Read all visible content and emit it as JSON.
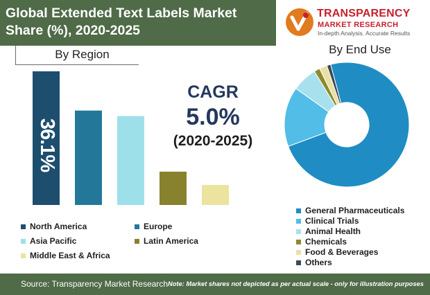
{
  "header": {
    "title": "Global Extended Text Labels Market Share (%), 2020-2025",
    "logo_brand": "TRANSPARENCY",
    "logo_sub": "MARKET RESEARCH",
    "logo_tagline": "In-depth Analysis. Accurate Results"
  },
  "cagr": {
    "label": "CAGR",
    "value": "5.0%",
    "period": "(2020-2025)"
  },
  "footer": {
    "source": "Source: Transparency Market Research",
    "note": "Note: Market shares not depicted as per actual scale - only for illustration purposes"
  },
  "chart_data": [
    {
      "type": "bar",
      "title": "By Region",
      "categories": [
        "North America",
        "Europe",
        "Asia Pacific",
        "Latin America",
        "Middle East & Africa"
      ],
      "values": [
        36.1,
        25.5,
        24.0,
        9.0,
        5.4
      ],
      "ylim": [
        0,
        36.1
      ],
      "data_labels": [
        "36.1%",
        "",
        "",
        "",
        ""
      ],
      "colors": [
        "#1d4e6e",
        "#23789a",
        "#9ee0ea",
        "#88812e",
        "#ebe39e"
      ],
      "legend_placement": "bottom",
      "grid": false
    },
    {
      "type": "pie",
      "title": "By End Use",
      "donut": true,
      "categories": [
        "General Pharmaceuticals",
        "Clinical Trials",
        "Animal Health",
        "Chemicals",
        "Food & Beverages",
        "Others"
      ],
      "values": [
        73.5,
        15.5,
        6.5,
        1.5,
        2.0,
        1.0
      ],
      "colors": [
        "#1f8dc4",
        "#52bde6",
        "#a9e0ee",
        "#8e8a2e",
        "#e8e1a4",
        "#3a4a57"
      ],
      "legend_placement": "bottom-right"
    }
  ]
}
